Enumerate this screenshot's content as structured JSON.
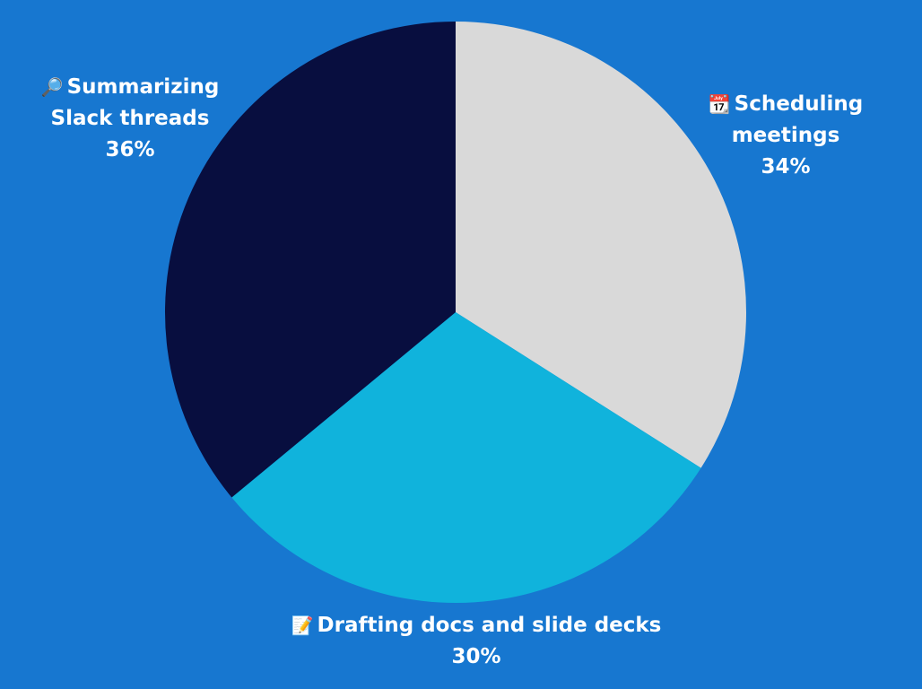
{
  "background": "#1777d0",
  "chart_data": {
    "type": "pie",
    "slices": [
      {
        "label": "Scheduling meetings",
        "label_lines": [
          "Scheduling",
          "meetings"
        ],
        "value": 34,
        "value_label": "34%",
        "color": "#d9d9d9",
        "icon": "calendar-icon",
        "glyph": "📆"
      },
      {
        "label": "Drafting docs and slide decks",
        "label_lines": [
          "Drafting docs and slide decks"
        ],
        "value": 30,
        "value_label": "30%",
        "color": "#10b3dc",
        "icon": "memo-icon",
        "glyph": "📝"
      },
      {
        "label": "Summarizing Slack threads",
        "label_lines": [
          "Summarizing",
          "Slack threads"
        ],
        "value": 36,
        "value_label": "36%",
        "color": "#080e3f",
        "icon": "magnifying-glass-icon",
        "glyph": "🔎"
      }
    ],
    "start_angle_deg": 0,
    "direction": "clockwise"
  }
}
